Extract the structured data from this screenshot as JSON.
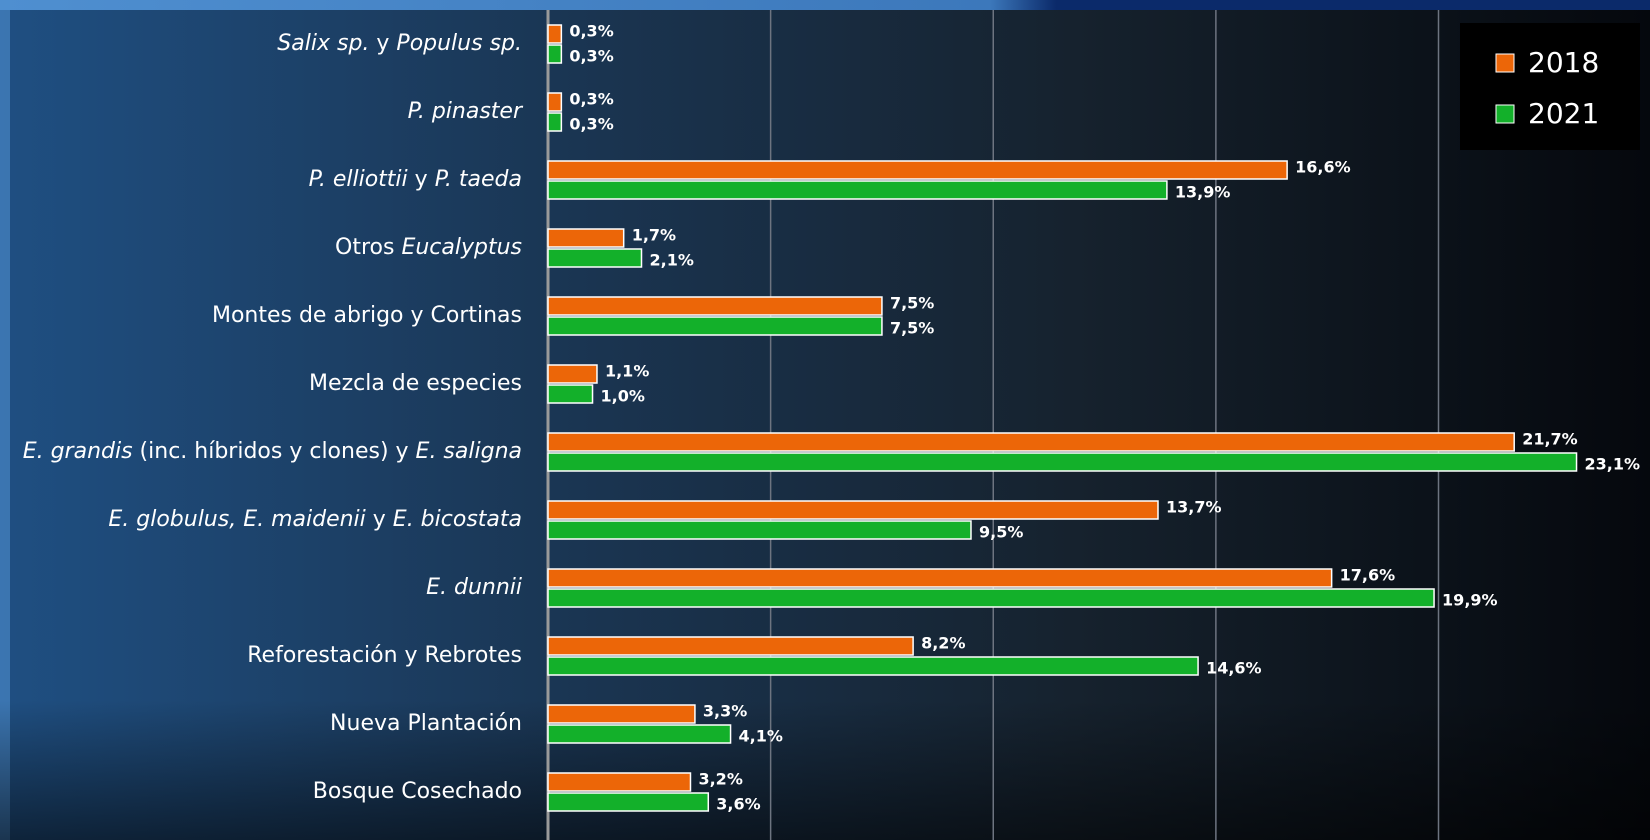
{
  "chart_data": {
    "type": "hbar",
    "categories": [
      {
        "parts": [
          {
            "text": "Salix sp.",
            "italic": true
          },
          {
            "text": " y ",
            "italic": false
          },
          {
            "text": "Populus sp.",
            "italic": true
          }
        ]
      },
      {
        "parts": [
          {
            "text": "P. pinaster",
            "italic": true
          }
        ]
      },
      {
        "parts": [
          {
            "text": "P. elliottii",
            "italic": true
          },
          {
            "text": " y ",
            "italic": false
          },
          {
            "text": "P. taeda",
            "italic": true
          }
        ]
      },
      {
        "parts": [
          {
            "text": "Otros ",
            "italic": false
          },
          {
            "text": "Eucalyptus",
            "italic": true
          }
        ]
      },
      {
        "parts": [
          {
            "text": "Montes de abrigo y Cortinas",
            "italic": false
          }
        ]
      },
      {
        "parts": [
          {
            "text": "Mezcla de especies",
            "italic": false
          }
        ]
      },
      {
        "parts": [
          {
            "text": "E. grandis",
            "italic": true
          },
          {
            "text": " (inc. híbridos y clones) y ",
            "italic": false
          },
          {
            "text": "E. saligna",
            "italic": true
          }
        ]
      },
      {
        "parts": [
          {
            "text": "E. globulus, E. maidenii",
            "italic": true
          },
          {
            "text": " y ",
            "italic": false
          },
          {
            "text": "E. bicostata",
            "italic": true
          }
        ]
      },
      {
        "parts": [
          {
            "text": "E. dunnii",
            "italic": true
          }
        ]
      },
      {
        "parts": [
          {
            "text": "Reforestación y Rebrotes",
            "italic": false
          }
        ]
      },
      {
        "parts": [
          {
            "text": "Nueva Plantación",
            "italic": false
          }
        ]
      },
      {
        "parts": [
          {
            "text": "Bosque Cosechado",
            "italic": false
          }
        ]
      }
    ],
    "series": [
      {
        "name": "2018",
        "color": "#ec6608",
        "values": [
          0.3,
          0.3,
          16.6,
          1.7,
          7.5,
          1.1,
          21.7,
          13.7,
          17.6,
          8.2,
          3.3,
          3.2
        ],
        "value_labels": [
          "0,3%",
          "0,3%",
          "16,6%",
          "1,7%",
          "7,5%",
          "1,1%",
          "21,7%",
          "13,7%",
          "17,6%",
          "8,2%",
          "3,3%",
          "3,2%"
        ]
      },
      {
        "name": "2021",
        "color": "#13b02a",
        "values": [
          0.3,
          0.3,
          13.9,
          2.1,
          7.5,
          1.0,
          23.1,
          9.5,
          19.9,
          14.6,
          4.1,
          3.6
        ],
        "value_labels": [
          "0,3%",
          "0,3%",
          "13,9%",
          "2,1%",
          "7,5%",
          "1,0%",
          "23,1%",
          "9,5%",
          "19,9%",
          "14,6%",
          "4,1%",
          "3,6%"
        ]
      }
    ],
    "xlim": [
      0,
      24.75
    ],
    "xticks": [
      0,
      5,
      10,
      15,
      20
    ],
    "grid": true,
    "legend": "top-right"
  }
}
